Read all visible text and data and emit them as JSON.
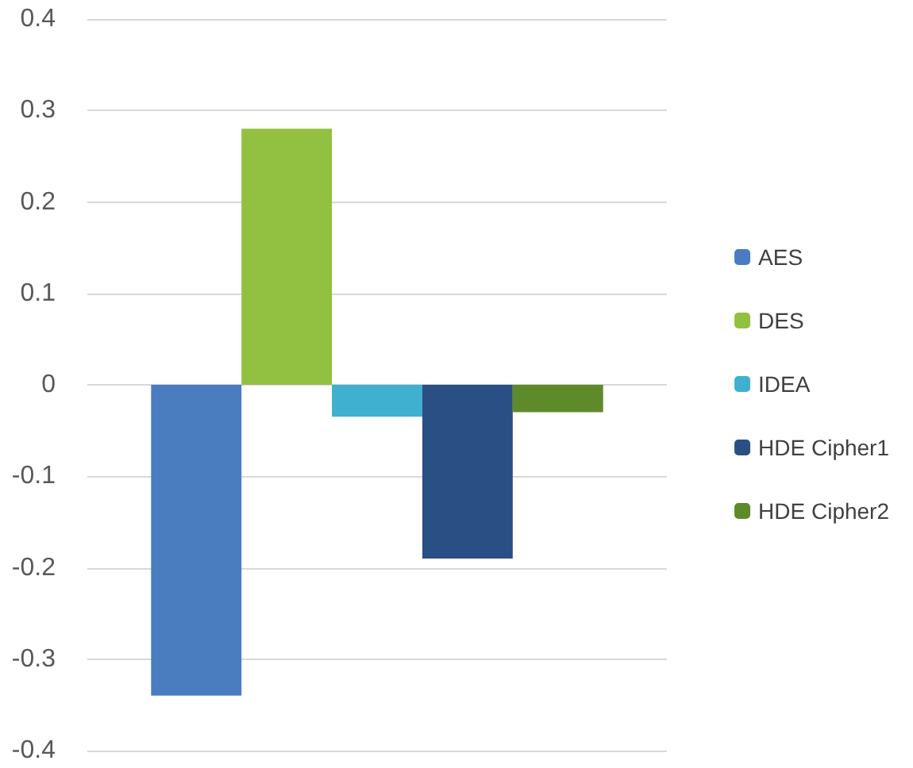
{
  "chart_data": {
    "type": "bar",
    "categories": [
      null
    ],
    "series": [
      {
        "name": "AES",
        "color": "#4a7cc0",
        "values": [
          -0.34
        ]
      },
      {
        "name": "DES",
        "color": "#92c040",
        "values": [
          0.28
        ]
      },
      {
        "name": "IDEA",
        "color": "#3fb0d0",
        "values": [
          -0.035
        ]
      },
      {
        "name": "HDE Cipher1",
        "color": "#2a4f85",
        "values": [
          -0.19
        ]
      },
      {
        "name": "HDE Cipher2",
        "color": "#5f8a2a",
        "values": [
          -0.03
        ]
      }
    ],
    "ylim": [
      -0.4,
      0.4
    ],
    "yticks": [
      -0.4,
      -0.3,
      -0.2,
      -0.1,
      0,
      0.1,
      0.2,
      0.3,
      0.4
    ],
    "grid": "y",
    "legend": "right"
  }
}
